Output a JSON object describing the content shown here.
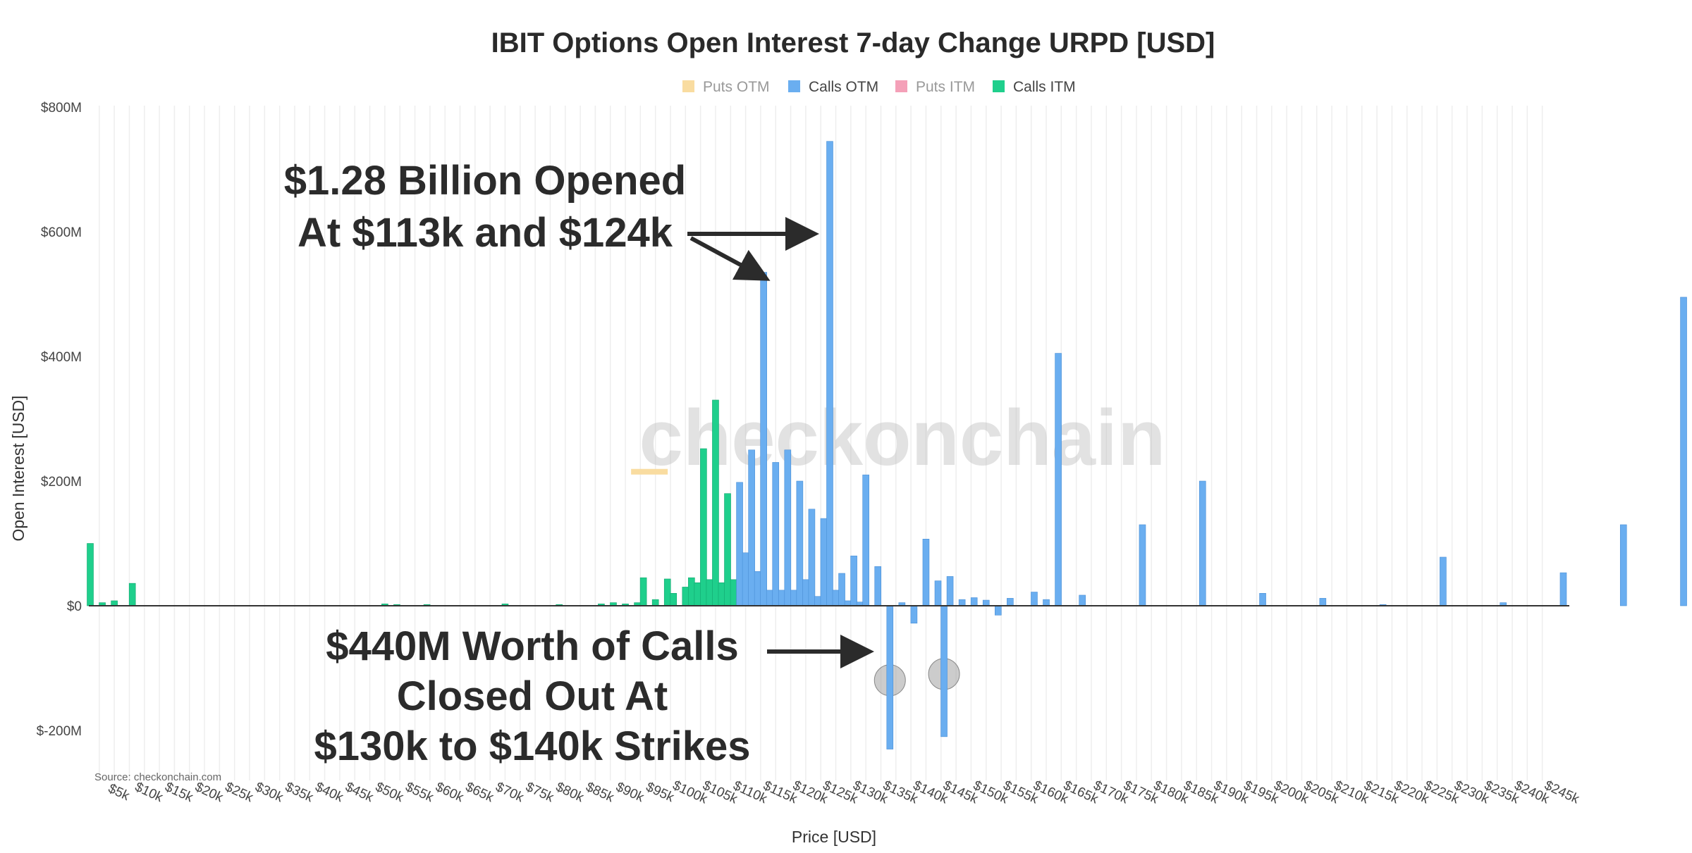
{
  "chart_data": {
    "type": "bar",
    "title": "IBIT Options Open Interest 7-day Change URPD [USD]",
    "xlabel": "Price [USD]",
    "ylabel": "Open Interest [USD]",
    "ylim": [
      -300,
      800
    ],
    "y_ticks": [
      {
        "value": 800,
        "label": "$800M"
      },
      {
        "value": 600,
        "label": "$600M"
      },
      {
        "value": 400,
        "label": "$400M"
      },
      {
        "value": 200,
        "label": "$200M"
      },
      {
        "value": 0,
        "label": "$0"
      },
      {
        "value": -200,
        "label": "$-200M"
      }
    ],
    "x_range_k": [
      1,
      247
    ],
    "x_ticks": [
      "$5k",
      "$10k",
      "$15k",
      "$20k",
      "$25k",
      "$30k",
      "$35k",
      "$40k",
      "$45k",
      "$50k",
      "$55k",
      "$60k",
      "$65k",
      "$70k",
      "$75k",
      "$80k",
      "$85k",
      "$90k",
      "$95k",
      "$100k",
      "$105k",
      "$110k",
      "$115k",
      "$120k",
      "$125k",
      "$130k",
      "$135k",
      "$140k",
      "$145k",
      "$150k",
      "$155k",
      "$160k",
      "$165k",
      "$170k",
      "$175k",
      "$180k",
      "$185k",
      "$190k",
      "$195k",
      "$200k",
      "$205k",
      "$210k",
      "$215k",
      "$220k",
      "$225k",
      "$230k",
      "$235k",
      "$240k",
      "$245k"
    ],
    "legend": {
      "position": "top-center",
      "items": [
        {
          "name": "Puts OTM",
          "color": "#f9dca0",
          "dimmed": true
        },
        {
          "name": "Calls OTM",
          "color": "#6aaef0",
          "dimmed": false
        },
        {
          "name": "Puts ITM",
          "color": "#f4a0b8",
          "dimmed": true
        },
        {
          "name": "Calls ITM",
          "color": "#1fcf8c",
          "dimmed": false
        }
      ]
    },
    "series": [
      {
        "name": "Calls ITM",
        "color": "#1fcf8c",
        "points": [
          {
            "strike": 1,
            "value": 100
          },
          {
            "strike": 3,
            "value": 5
          },
          {
            "strike": 5,
            "value": 8
          },
          {
            "strike": 8,
            "value": 36
          },
          {
            "strike": 50,
            "value": 3
          },
          {
            "strike": 52,
            "value": 2
          },
          {
            "strike": 57,
            "value": 2
          },
          {
            "strike": 70,
            "value": 3
          },
          {
            "strike": 79,
            "value": 2
          },
          {
            "strike": 86,
            "value": 3
          },
          {
            "strike": 88,
            "value": 5
          },
          {
            "strike": 90,
            "value": 3
          },
          {
            "strike": 92,
            "value": 5
          },
          {
            "strike": 93,
            "value": 45
          },
          {
            "strike": 95,
            "value": 10
          },
          {
            "strike": 97,
            "value": 43
          },
          {
            "strike": 98,
            "value": 20
          },
          {
            "strike": 100,
            "value": 30
          },
          {
            "strike": 101,
            "value": 45
          },
          {
            "strike": 102,
            "value": 37
          },
          {
            "strike": 103,
            "value": 252
          },
          {
            "strike": 104,
            "value": 42
          },
          {
            "strike": 105,
            "value": 330
          },
          {
            "strike": 106,
            "value": 37
          },
          {
            "strike": 107,
            "value": 180
          },
          {
            "strike": 108,
            "value": 42
          }
        ]
      },
      {
        "name": "Calls OTM",
        "color": "#6aaef0",
        "points": [
          {
            "strike": 109,
            "value": 198
          },
          {
            "strike": 110,
            "value": 85
          },
          {
            "strike": 111,
            "value": 250
          },
          {
            "strike": 112,
            "value": 55
          },
          {
            "strike": 113,
            "value": 535
          },
          {
            "strike": 114,
            "value": 25
          },
          {
            "strike": 115,
            "value": 230
          },
          {
            "strike": 116,
            "value": 25
          },
          {
            "strike": 117,
            "value": 250
          },
          {
            "strike": 118,
            "value": 25
          },
          {
            "strike": 119,
            "value": 200
          },
          {
            "strike": 120,
            "value": 42
          },
          {
            "strike": 121,
            "value": 155
          },
          {
            "strike": 122,
            "value": 15
          },
          {
            "strike": 123,
            "value": 140
          },
          {
            "strike": 124,
            "value": 745
          },
          {
            "strike": 125,
            "value": 25
          },
          {
            "strike": 126,
            "value": 52
          },
          {
            "strike": 127,
            "value": 8
          },
          {
            "strike": 128,
            "value": 80
          },
          {
            "strike": 129,
            "value": 6
          },
          {
            "strike": 130,
            "value": 210
          },
          {
            "strike": 132,
            "value": 63
          },
          {
            "strike": 134,
            "value": -230
          },
          {
            "strike": 136,
            "value": 5
          },
          {
            "strike": 138,
            "value": -28
          },
          {
            "strike": 140,
            "value": 107
          },
          {
            "strike": 142,
            "value": 40
          },
          {
            "strike": 143,
            "value": -210
          },
          {
            "strike": 144,
            "value": 47
          },
          {
            "strike": 146,
            "value": 10
          },
          {
            "strike": 148,
            "value": 13
          },
          {
            "strike": 150,
            "value": 9
          },
          {
            "strike": 152,
            "value": -15
          },
          {
            "strike": 154,
            "value": 12
          },
          {
            "strike": 158,
            "value": 22
          },
          {
            "strike": 160,
            "value": 10
          },
          {
            "strike": 162,
            "value": 405
          },
          {
            "strike": 166,
            "value": 17
          },
          {
            "strike": 176,
            "value": 130
          },
          {
            "strike": 186,
            "value": 200
          },
          {
            "strike": 196,
            "value": 20
          },
          {
            "strike": 206,
            "value": 12
          },
          {
            "strike": 216,
            "value": 2
          },
          {
            "strike": 226,
            "value": 78
          },
          {
            "strike": 236,
            "value": 5
          },
          {
            "strike": 246,
            "value": 53
          },
          {
            "strike": 256,
            "value": 130
          },
          {
            "strike": 266,
            "value": 495
          }
        ]
      },
      {
        "name": "Puts OTM",
        "color": "#f9dca0",
        "points": [
          {
            "strike": 94,
            "value": 215
          }
        ]
      }
    ],
    "annotations": [
      {
        "lines": [
          "$1.28 Billion Opened",
          "At $113k and $124k"
        ]
      },
      {
        "lines": [
          "$440M Worth of Calls",
          "Closed Out At",
          "$130k to $140k Strikes"
        ]
      }
    ],
    "highlights": [
      {
        "strike": 134,
        "from": 0,
        "to": -230
      },
      {
        "strike": 143,
        "from": 0,
        "to": -210
      }
    ],
    "watermark": "checkonchain",
    "source": "Source: checkonchain.com"
  }
}
